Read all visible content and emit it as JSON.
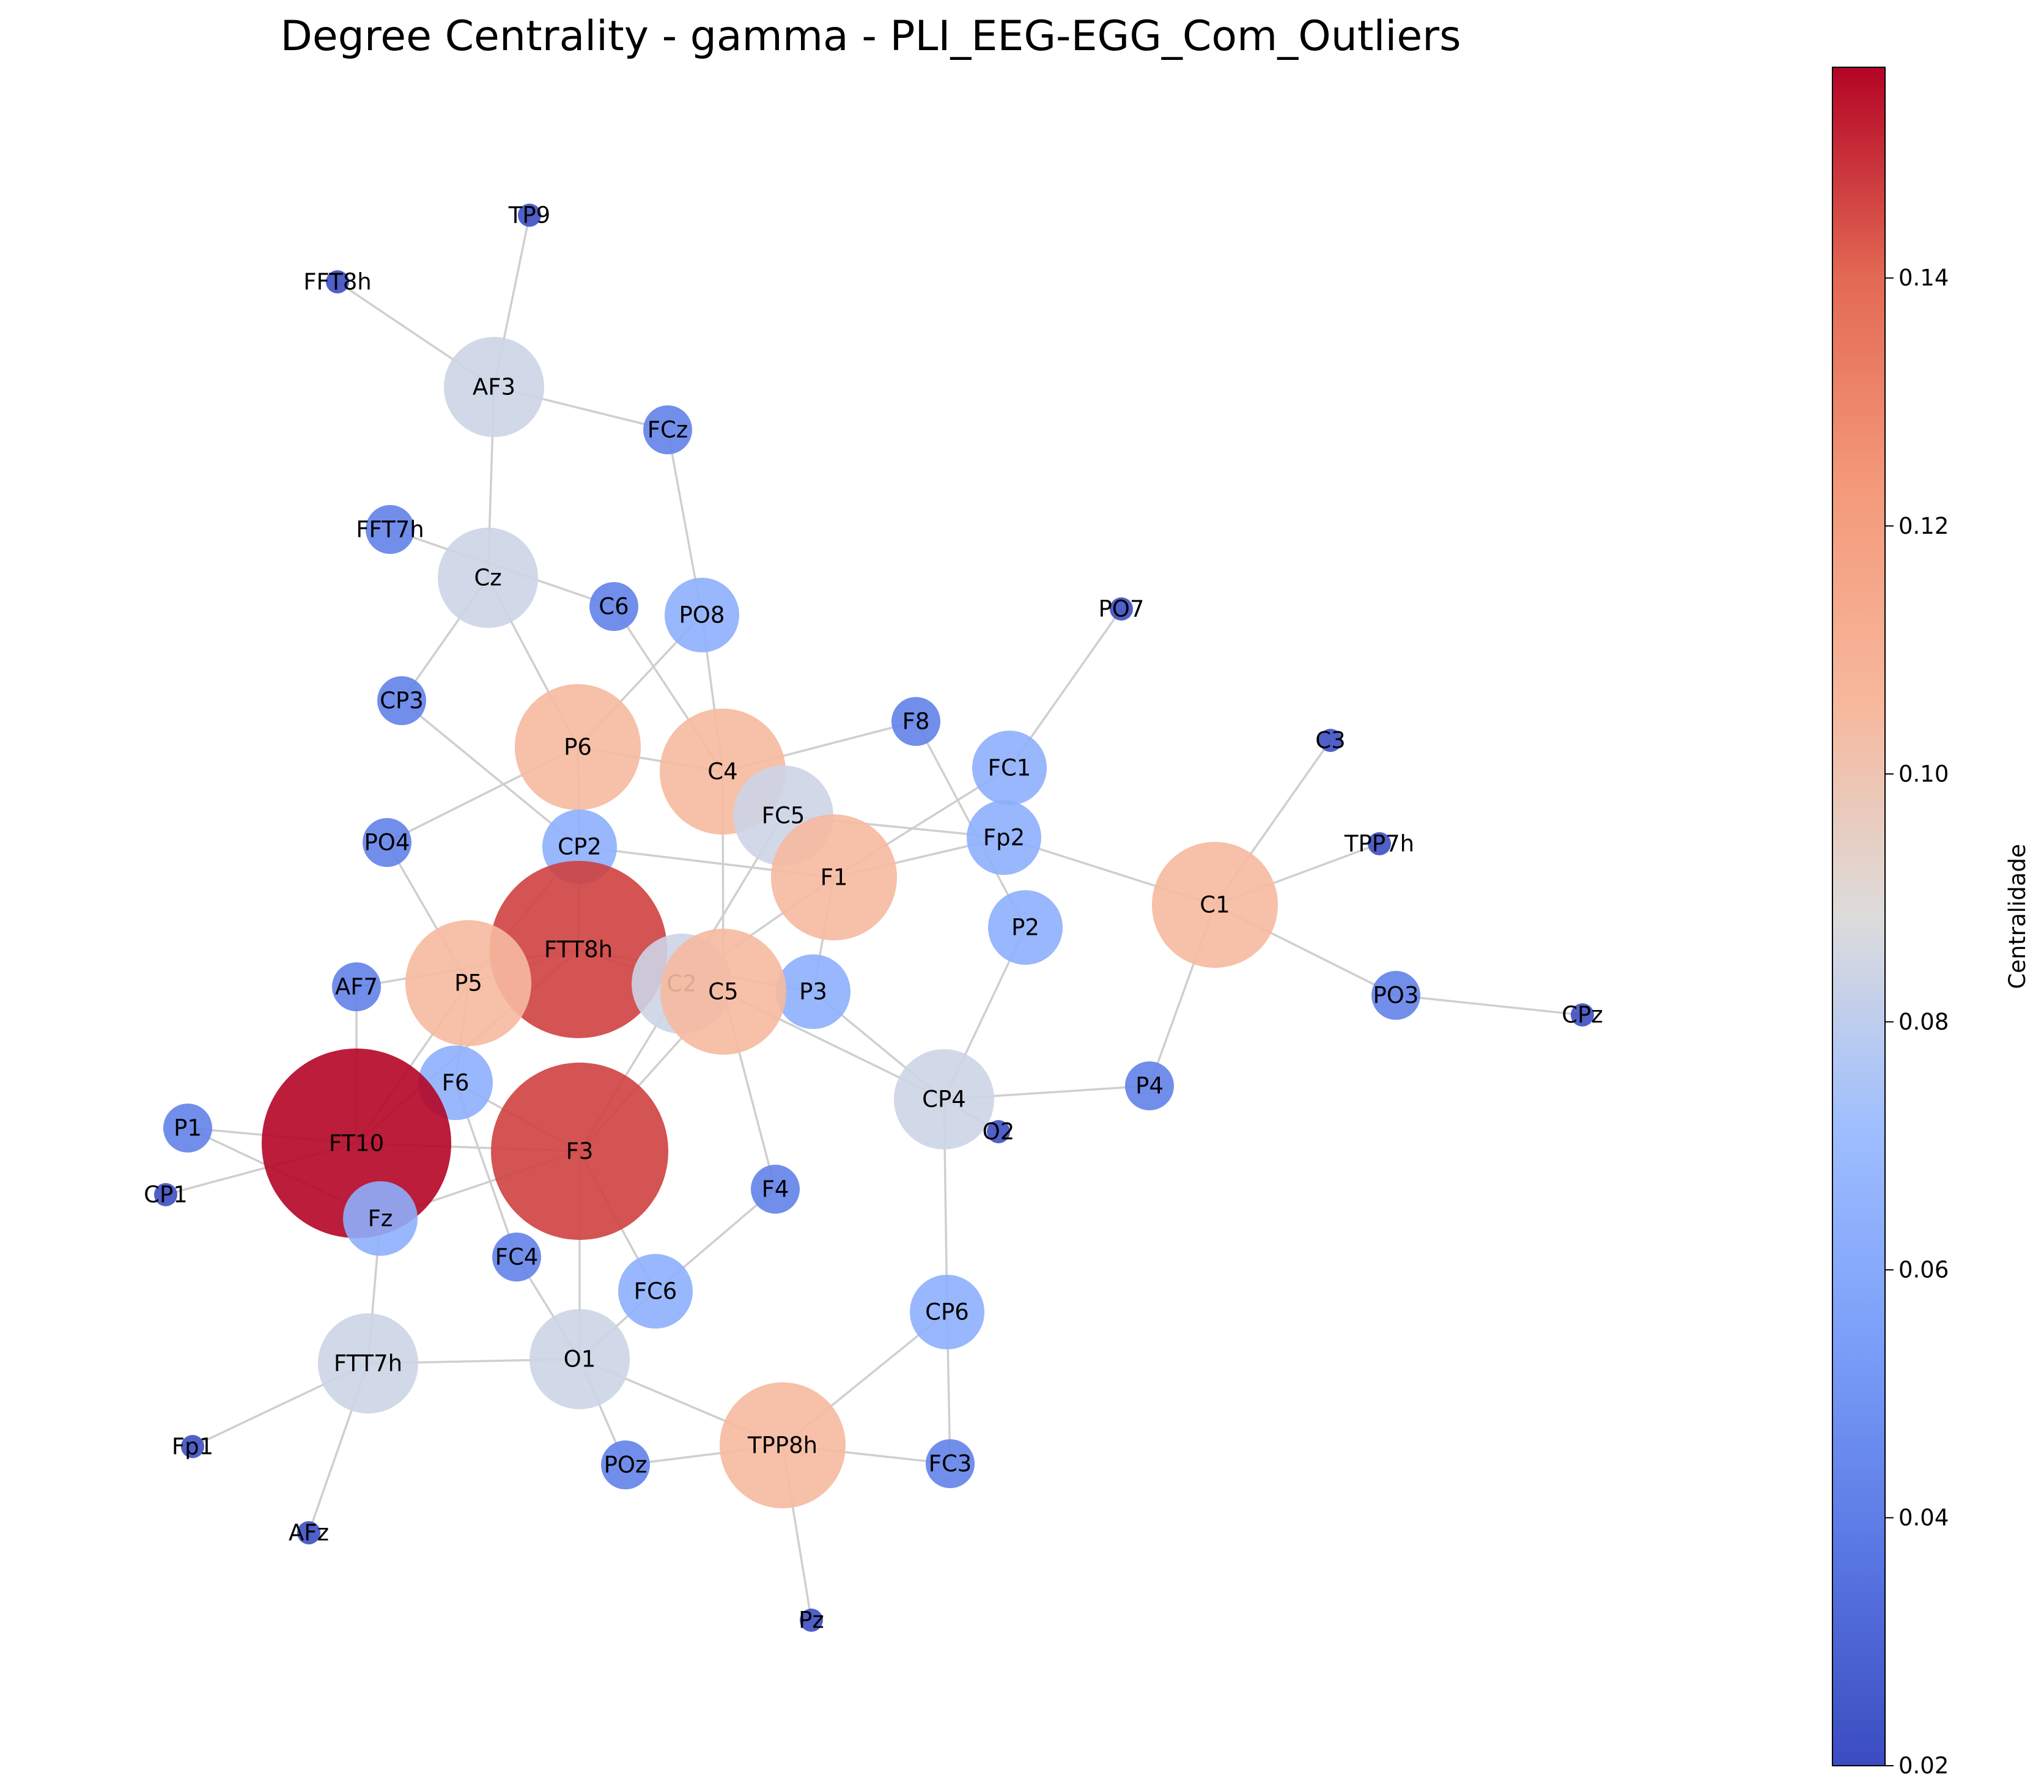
{
  "title": "Degree Centrality - gamma - PLI_EEG-EGG_Com_Outliers",
  "colorbar": {
    "label": "Centralidade",
    "min": 0.02,
    "max": 0.157,
    "ticks": [
      "0.02",
      "0.04",
      "0.06",
      "0.08",
      "0.10",
      "0.12",
      "0.14"
    ],
    "colormap": "coolwarm"
  },
  "nodes": [
    {
      "id": "TP9",
      "centrality": 0.021
    },
    {
      "id": "FFT8h",
      "centrality": 0.021
    },
    {
      "id": "AF3",
      "centrality": 0.084
    },
    {
      "id": "FCz",
      "centrality": 0.042
    },
    {
      "id": "FFT7h",
      "centrality": 0.042
    },
    {
      "id": "Cz",
      "centrality": 0.084
    },
    {
      "id": "C6",
      "centrality": 0.042
    },
    {
      "id": "PO8",
      "centrality": 0.063
    },
    {
      "id": "PO7",
      "centrality": 0.021
    },
    {
      "id": "CP3",
      "centrality": 0.042
    },
    {
      "id": "F8",
      "centrality": 0.042
    },
    {
      "id": "C3",
      "centrality": 0.021
    },
    {
      "id": "P6",
      "centrality": 0.105
    },
    {
      "id": "C4",
      "centrality": 0.105
    },
    {
      "id": "FC1",
      "centrality": 0.063
    },
    {
      "id": "FC5",
      "centrality": 0.084
    },
    {
      "id": "TPP7h",
      "centrality": 0.021
    },
    {
      "id": "PO4",
      "centrality": 0.042
    },
    {
      "id": "CP2",
      "centrality": 0.063
    },
    {
      "id": "Fp2",
      "centrality": 0.063
    },
    {
      "id": "F1",
      "centrality": 0.105
    },
    {
      "id": "C1",
      "centrality": 0.105
    },
    {
      "id": "P2",
      "centrality": 0.063
    },
    {
      "id": "FTT8h",
      "centrality": 0.147
    },
    {
      "id": "AF7",
      "centrality": 0.042
    },
    {
      "id": "C2",
      "centrality": 0.084
    },
    {
      "id": "P3",
      "centrality": 0.063
    },
    {
      "id": "PO3",
      "centrality": 0.042
    },
    {
      "id": "CPz",
      "centrality": 0.021
    },
    {
      "id": "P5",
      "centrality": 0.105
    },
    {
      "id": "C5",
      "centrality": 0.105
    },
    {
      "id": "F6",
      "centrality": 0.063
    },
    {
      "id": "CP4",
      "centrality": 0.084
    },
    {
      "id": "P4",
      "centrality": 0.042
    },
    {
      "id": "O2",
      "centrality": 0.021
    },
    {
      "id": "P1",
      "centrality": 0.042
    },
    {
      "id": "FT10",
      "centrality": 0.157
    },
    {
      "id": "F3",
      "centrality": 0.147
    },
    {
      "id": "CP1",
      "centrality": 0.021
    },
    {
      "id": "F4",
      "centrality": 0.042
    },
    {
      "id": "Fz",
      "centrality": 0.063
    },
    {
      "id": "FC4",
      "centrality": 0.042
    },
    {
      "id": "FC6",
      "centrality": 0.063
    },
    {
      "id": "CP6",
      "centrality": 0.063
    },
    {
      "id": "FTT7h",
      "centrality": 0.084
    },
    {
      "id": "O1",
      "centrality": 0.084
    },
    {
      "id": "TPP8h",
      "centrality": 0.105
    },
    {
      "id": "Fp1",
      "centrality": 0.021
    },
    {
      "id": "POz",
      "centrality": 0.042
    },
    {
      "id": "FC3",
      "centrality": 0.042
    },
    {
      "id": "AFz",
      "centrality": 0.021
    },
    {
      "id": "Pz",
      "centrality": 0.021
    }
  ],
  "edges": [
    [
      "TP9",
      "AF3"
    ],
    [
      "FFT8h",
      "AF3"
    ],
    [
      "AF3",
      "FCz"
    ],
    [
      "AF3",
      "Cz"
    ],
    [
      "FCz",
      "PO8"
    ],
    [
      "FFT7h",
      "C6"
    ],
    [
      "Cz",
      "CP3"
    ],
    [
      "Cz",
      "P6"
    ],
    [
      "C6",
      "C4"
    ],
    [
      "PO8",
      "P6"
    ],
    [
      "PO8",
      "C4"
    ],
    [
      "PO7",
      "FC1"
    ],
    [
      "CP3",
      "CP2"
    ],
    [
      "P6",
      "C4"
    ],
    [
      "P6",
      "CP2"
    ],
    [
      "P6",
      "PO4"
    ],
    [
      "F8",
      "C4"
    ],
    [
      "F8",
      "P2"
    ],
    [
      "C3",
      "C1"
    ],
    [
      "C4",
      "C5"
    ],
    [
      "FC1",
      "F1"
    ],
    [
      "FC5",
      "Fp2"
    ],
    [
      "FC5",
      "C2"
    ],
    [
      "CP2",
      "F1"
    ],
    [
      "CP2",
      "P5"
    ],
    [
      "CP2",
      "FTT8h"
    ],
    [
      "Fp2",
      "F1"
    ],
    [
      "Fp2",
      "C1"
    ],
    [
      "F1",
      "C2"
    ],
    [
      "F1",
      "P3"
    ],
    [
      "C1",
      "TPP7h"
    ],
    [
      "C1",
      "PO3"
    ],
    [
      "C1",
      "P4"
    ],
    [
      "P2",
      "CP4"
    ],
    [
      "PO4",
      "P5"
    ],
    [
      "FTT8h",
      "AF7"
    ],
    [
      "FTT8h",
      "P5"
    ],
    [
      "FTT8h",
      "FT10"
    ],
    [
      "FTT8h",
      "C2"
    ],
    [
      "FTT8h",
      "P3"
    ],
    [
      "C2",
      "F3"
    ],
    [
      "P3",
      "CP4"
    ],
    [
      "PO3",
      "CPz"
    ],
    [
      "AF7",
      "FT10"
    ],
    [
      "P5",
      "F6"
    ],
    [
      "C5",
      "F3"
    ],
    [
      "C5",
      "CP4"
    ],
    [
      "C5",
      "F4"
    ],
    [
      "CP4",
      "P4"
    ],
    [
      "CP4",
      "O2"
    ],
    [
      "CP4",
      "CP6"
    ],
    [
      "F6",
      "F3"
    ],
    [
      "F6",
      "FC4"
    ],
    [
      "P1",
      "FT10"
    ],
    [
      "P1",
      "Fz"
    ],
    [
      "FT10",
      "F3"
    ],
    [
      "FT10",
      "CP1"
    ],
    [
      "FT10",
      "P5"
    ],
    [
      "F3",
      "Fz"
    ],
    [
      "F3",
      "FC6"
    ],
    [
      "F3",
      "O1"
    ],
    [
      "F4",
      "FC6"
    ],
    [
      "Fz",
      "FTT7h"
    ],
    [
      "FC4",
      "O1"
    ],
    [
      "FC6",
      "O1"
    ],
    [
      "CP6",
      "TPP8h"
    ],
    [
      "CP6",
      "FC3"
    ],
    [
      "FTT7h",
      "O1"
    ],
    [
      "FTT7h",
      "Fp1"
    ],
    [
      "FTT7h",
      "AFz"
    ],
    [
      "O1",
      "TPP8h"
    ],
    [
      "O1",
      "POz"
    ],
    [
      "TPP8h",
      "POz"
    ],
    [
      "TPP8h",
      "FC3"
    ],
    [
      "TPP8h",
      "Pz"
    ]
  ]
}
